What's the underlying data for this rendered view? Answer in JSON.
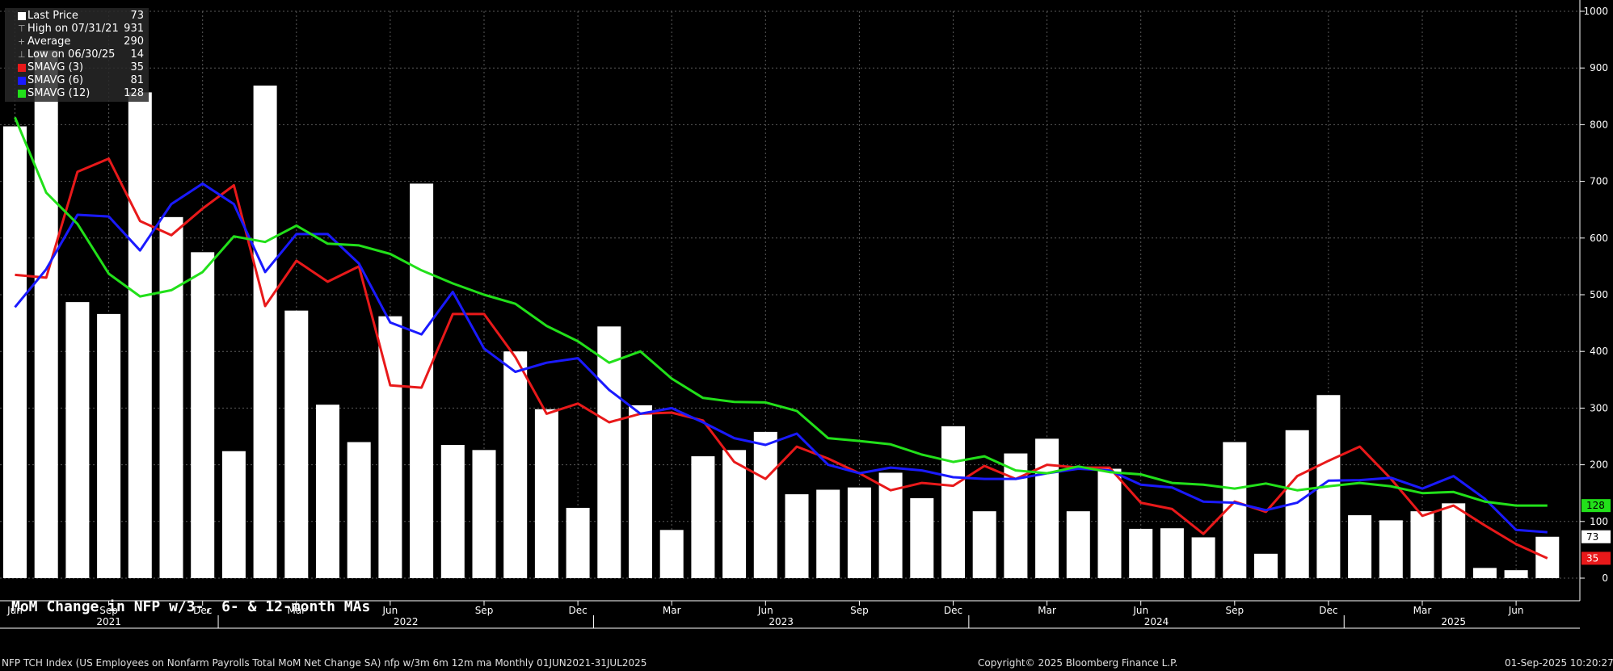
{
  "chart_data": {
    "type": "bar",
    "title": "MoM Change in NFP w/3-, 6- & 12-month MAs",
    "months": [
      "Jun 2021",
      "Jul 2021",
      "Aug 2021",
      "Sep 2021",
      "Oct 2021",
      "Nov 2021",
      "Dec 2021",
      "Jan 2022",
      "Feb 2022",
      "Mar 2022",
      "Apr 2022",
      "May 2022",
      "Jun 2022",
      "Jul 2022",
      "Aug 2022",
      "Sep 2022",
      "Oct 2022",
      "Nov 2022",
      "Dec 2022",
      "Jan 2023",
      "Feb 2023",
      "Mar 2023",
      "Apr 2023",
      "May 2023",
      "Jun 2023",
      "Jul 2023",
      "Aug 2023",
      "Sep 2023",
      "Oct 2023",
      "Nov 2023",
      "Dec 2023",
      "Jan 2024",
      "Feb 2024",
      "Mar 2024",
      "Apr 2024",
      "May 2024",
      "Jun 2024",
      "Jul 2024",
      "Aug 2024",
      "Sep 2024",
      "Oct 2024",
      "Nov 2024",
      "Dec 2024",
      "Jan 2025",
      "Feb 2025",
      "Mar 2025",
      "Apr 2025",
      "May 2025",
      "Jun 2025",
      "Jul 2025"
    ],
    "series": [
      {
        "name": "Last Price",
        "color": "#ffffff",
        "type": "bar",
        "values": [
          797,
          931,
          487,
          466,
          857,
          637,
          575,
          224,
          869,
          472,
          306,
          240,
          462,
          696,
          235,
          226,
          400,
          298,
          124,
          444,
          305,
          85,
          215,
          226,
          258,
          148,
          156,
          160,
          186,
          141,
          268,
          118,
          220,
          246,
          118,
          193,
          87,
          88,
          72,
          240,
          43,
          261,
          323,
          111,
          102,
          118,
          132,
          18,
          14,
          73
        ]
      },
      {
        "name": "SMAVG (3)",
        "color": "#e8191a",
        "type": "line",
        "values": [
          535,
          530,
          717,
          740,
          630,
          605,
          652,
          693,
          480,
          560,
          523,
          550,
          340,
          336,
          466,
          466,
          390,
          290,
          308,
          275,
          290,
          292,
          278,
          205,
          175,
          232,
          211,
          185,
          155,
          168,
          163,
          198,
          175,
          200,
          195,
          195,
          133,
          122,
          78,
          135,
          117,
          180,
          207,
          232,
          175,
          110,
          128,
          93,
          60,
          35
        ]
      },
      {
        "name": "SMAVG (6)",
        "color": "#1a1aff",
        "type": "line",
        "values": [
          478,
          545,
          641,
          638,
          578,
          660,
          696,
          660,
          540,
          607,
          607,
          555,
          451,
          430,
          505,
          405,
          364,
          380,
          388,
          332,
          290,
          300,
          275,
          247,
          235,
          255,
          200,
          185,
          195,
          190,
          178,
          175,
          175,
          185,
          193,
          190,
          165,
          160,
          135,
          133,
          120,
          133,
          172,
          173,
          177,
          158,
          180,
          140,
          85,
          81
        ]
      },
      {
        "name": "SMAVG (12)",
        "color": "#22e01a",
        "type": "line",
        "values": [
          813,
          680,
          625,
          537,
          497,
          508,
          540,
          603,
          593,
          622,
          590,
          587,
          572,
          543,
          520,
          500,
          484,
          445,
          418,
          380,
          400,
          352,
          318,
          311,
          310,
          295,
          247,
          242,
          236,
          218,
          205,
          215,
          190,
          185,
          197,
          187,
          183,
          168,
          165,
          158,
          167,
          155,
          162,
          168,
          162,
          150,
          152,
          135,
          128,
          128
        ]
      }
    ],
    "legend": [
      {
        "label": "Last Price",
        "value": "73",
        "color": "#ffffff",
        "marker": "square"
      },
      {
        "label": "High on 07/31/21",
        "value": "931",
        "marker": "high"
      },
      {
        "label": "Average",
        "value": "290",
        "marker": "avg"
      },
      {
        "label": "Low on 06/30/25",
        "value": "14",
        "marker": "low"
      },
      {
        "label": "SMAVG (3)",
        "value": "35",
        "color": "#e8191a",
        "marker": "square"
      },
      {
        "label": "SMAVG (6)",
        "value": "81",
        "color": "#1a1aff",
        "marker": "square"
      },
      {
        "label": "SMAVG (12)",
        "value": "128",
        "color": "#22e01a",
        "marker": "square"
      }
    ],
    "ylim": [
      0,
      1000
    ],
    "yticks": [
      "0",
      "100",
      "200",
      "300",
      "400",
      "500",
      "600",
      "700",
      "800",
      "900",
      "1000"
    ],
    "x_month_labels": [
      {
        "index": 0,
        "label": "Jun"
      },
      {
        "index": 3,
        "label": "Sep"
      },
      {
        "index": 6,
        "label": "Dec"
      },
      {
        "index": 9,
        "label": "Mar"
      },
      {
        "index": 12,
        "label": "Jun"
      },
      {
        "index": 15,
        "label": "Sep"
      },
      {
        "index": 18,
        "label": "Dec"
      },
      {
        "index": 21,
        "label": "Mar"
      },
      {
        "index": 24,
        "label": "Jun"
      },
      {
        "index": 27,
        "label": "Sep"
      },
      {
        "index": 30,
        "label": "Dec"
      },
      {
        "index": 33,
        "label": "Mar"
      },
      {
        "index": 36,
        "label": "Jun"
      },
      {
        "index": 39,
        "label": "Sep"
      },
      {
        "index": 42,
        "label": "Dec"
      },
      {
        "index": 45,
        "label": "Mar"
      },
      {
        "index": 48,
        "label": "Jun"
      }
    ],
    "x_year_labels": [
      {
        "from": 0,
        "to": 6,
        "label": "2021"
      },
      {
        "from": 7,
        "to": 18,
        "label": "2022"
      },
      {
        "from": 19,
        "to": 30,
        "label": "2023"
      },
      {
        "from": 31,
        "to": 42,
        "label": "2024"
      },
      {
        "from": 43,
        "to": 49,
        "label": "2025"
      }
    ],
    "last_value_tags": [
      {
        "value": "128",
        "bg": "#22e01a",
        "fg": "#000000"
      },
      {
        "value": "73",
        "bg": "#ffffff",
        "fg": "#000000"
      },
      {
        "value": "35",
        "bg": "#e8191a",
        "fg": "#ffffff"
      }
    ],
    "grid": true
  },
  "footer": {
    "left": "NFP TCH Index (US Employees on Nonfarm Payrolls Total MoM Net Change SA) nfp w/3m 6m 12m ma  Monthly 01JUN2021-31JUL2025",
    "center": "Copyright© 2025 Bloomberg Finance L.P.",
    "right": "01-Sep-2025 10:20:27"
  }
}
